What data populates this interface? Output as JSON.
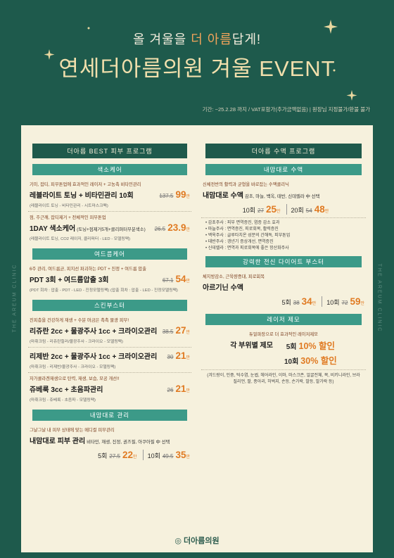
{
  "header": {
    "subtitle": [
      "올 겨울을 ",
      "더 아름",
      "답게!"
    ],
    "title": "연세더아름의원 겨울 EVENT",
    "note": "기간: ~25.2.28 까지 / VAT포함가(추가금액없음) | 원장님 지정불가/환불 불가"
  },
  "side_text": "THE AREUM CLINIC",
  "unit": "만",
  "left": {
    "title": "더아름 BEST 피부 프로그램",
    "sections": [
      {
        "heading": "색소케어",
        "items": [
          {
            "desc": "기미, 잡티, 피부톤업에 효과적인 레이저 + 고농축 비타민관리",
            "name": "레블라이트 토닝 + 비타민관리 10회",
            "sub": "(레블라이트 토닝 - 비타민관리 - 시트마스크팩)",
            "old": "137.5",
            "price": "99"
          },
          {
            "desc": "점, 주근깨, 잡티제거 + 전체적인 피부톤업",
            "name": "1DAY 색소케어",
            "name_sub": "(토닝+점제거5개+클리퍼터부분색소)",
            "sub": "(레블라이트 토닝, CO2 레이저, 클리퍼터 - LED - 모델링팩)",
            "old": "26.5",
            "price": "23.9"
          }
        ]
      },
      {
        "heading": "여드름케어",
        "items": [
          {
            "desc": "6주 관리, 여드름균, 피지선 파괴하는 PDT + 진정 + 여드름 압출",
            "name": "PDT 3회 + 여드름압출 3회",
            "sub": "(PDT 회차 : 압출 - PDT - LED - 진정모델링팩)  (압출 회차 : 압출 - LED - 진정모델링팩)",
            "old": "67.1",
            "price": "54"
          }
        ]
      },
      {
        "heading": "스킨부스터",
        "items": [
          {
            "desc": "진피층을 건강하게 재생 + 수분 머금은 촉촉 물광 피부!",
            "name": "리쥬란 2cc + 물광주사 1cc + 크라이오관리",
            "sub": "(마취크림 - 리쥬란힐러/물광주사 - 크라이오 - 모델링팩)",
            "old": "38.5",
            "price": "27"
          },
          {
            "name": "리제반 2cc + 물광주사 1cc + 크라이오관리",
            "sub": "(마취크림 - 리제반/물광주사 - 크라이오 - 모델링팩)",
            "old": "30",
            "price": "21"
          },
          {
            "desc": "자가콜라겐재생으로 탄력, 재생, 보습, 모공 개선!!",
            "name": "쥬베룩 3cc + 초음파관리",
            "sub": "(마취크림 - 쥬베룩 - 초음파 - 모델링팩)",
            "old": "26",
            "price": "21"
          }
        ]
      },
      {
        "heading": "내맘대로 관리",
        "items": [
          {
            "desc": "그날그날 내 피부 상태에 맞는 메디컬 피부관리",
            "name": "내맘대로 피부 관리",
            "name_sub": "비타민, 재생, 진정, 권즈필, 아쿠아필 中 선택",
            "options": [
              {
                "count": "5회",
                "old": "27.5",
                "price": "22"
              },
              {
                "count": "10회",
                "old": "49.5",
                "price": "35"
              }
            ]
          }
        ]
      }
    ]
  },
  "right": {
    "title": "더아름 수액 프로그램",
    "sections": [
      {
        "heading": "내맘대로 수액",
        "items": [
          {
            "desc": "신체전반의 활력과 균형을 바로잡는 수액클리닉",
            "name": "내맘대로 수액",
            "name_sub": "감초, 마늘, 백옥, 태반, 신데렐라 中 선택",
            "options": [
              {
                "count": "10회",
                "old": "27",
                "price": "25"
              },
              {
                "count": "20회",
                "old": "54",
                "price": "48"
              }
            ]
          }
        ],
        "bullets": [
          "감초주사 : 피부 면역증진, 염증 감소 효과",
          "마늘주사 : 면역증진, 피로회복, 활력증진",
          "백옥주사 : 글루타치온 성분의 간해독, 피부톤업",
          "태반주사 : 갱년기 증상개선, 면역증진",
          "신데렐라 : 면역과 피로회복에 좋은 항산화주사"
        ]
      },
      {
        "heading": "강력한 전신 다이어트 부스터",
        "items": [
          {
            "desc": "체지방감소, 근육량증대, 피로회복",
            "name": "아르기닌 수액",
            "options": [
              {
                "count": "5회",
                "old": "38",
                "price": "34"
              },
              {
                "count": "10회",
                "old": "72",
                "price": "59"
              }
            ]
          }
        ]
      },
      {
        "heading": "레이저 제모",
        "items": [
          {
            "desc": "듀얼파장으로 더 효과적인 레이저제모",
            "name": "각 부위별 제모",
            "options": [
              {
                "count": "5회",
                "price": "10% 할인"
              },
              {
                "count": "10회",
                "price": "30% 할인"
              }
            ]
          }
        ],
        "note": "(겨드랑이, 인중, 턱수염, 눈썹, 헤어라인, 이마, 마스크존, 얼굴전체, 목, 비키니라인, 브라질리언, 팔, 종아리, 허벅지, 손등, 손가락, 발등, 발가락 등)"
      }
    ]
  },
  "footer": {
    "logo": "더아름의원"
  }
}
